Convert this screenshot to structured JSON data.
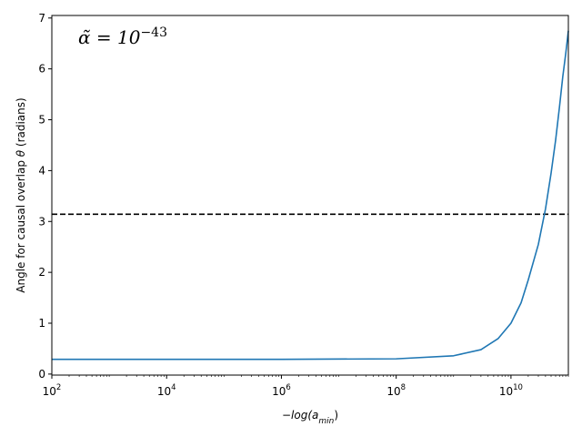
{
  "chart_data": {
    "type": "line",
    "xscale": "log",
    "xlim": [
      100,
      100000000000
    ],
    "ylim": [
      -0.02,
      7.05
    ],
    "grid": false,
    "xlabel_main": "−log(a",
    "xlabel_sub": "min",
    "xlabel_end": ")",
    "ylabel_main": "Angle for causal overlap ",
    "ylabel_theta": "θ",
    "ylabel_end": " (radians)",
    "annotation_main": "α̃ = 10",
    "annotation_exp": "−43",
    "x_ticks": [
      {
        "value": 100,
        "base": "10",
        "exp": "2"
      },
      {
        "value": 10000,
        "base": "10",
        "exp": "4"
      },
      {
        "value": 1000000,
        "base": "10",
        "exp": "6"
      },
      {
        "value": 100000000,
        "base": "10",
        "exp": "8"
      },
      {
        "value": 10000000000,
        "base": "10",
        "exp": "10"
      }
    ],
    "y_ticks": [
      0,
      1,
      2,
      3,
      4,
      5,
      6,
      7
    ],
    "hline": {
      "value": 3.14159,
      "style": "dashed",
      "color": "#000000"
    },
    "series": [
      {
        "color": "#1f77b4",
        "x": [
          100,
          10000,
          1000000,
          100000000,
          1000000000,
          3000000000,
          6000000000,
          10000000000,
          15000000000,
          20000000000,
          30000000000,
          40000000000,
          50000000000,
          60000000000,
          70000000000,
          80000000000,
          90000000000,
          100000000000
        ],
        "y": [
          0.29,
          0.29,
          0.29,
          0.3,
          0.36,
          0.48,
          0.7,
          1.0,
          1.4,
          1.85,
          2.55,
          3.25,
          3.95,
          4.6,
          5.25,
          5.85,
          6.3,
          6.75
        ]
      }
    ]
  }
}
